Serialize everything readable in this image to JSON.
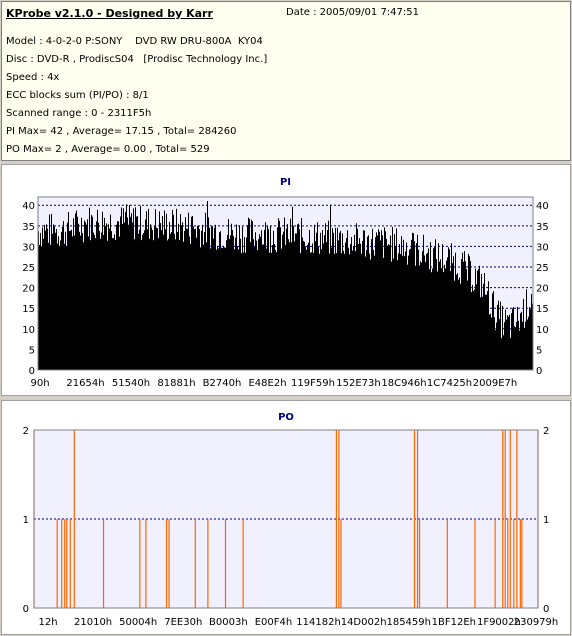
{
  "header": {
    "title": "KProbe v2.1.0 - Designed by Karr",
    "date_label": "Date : 2005/09/01 7:47:51"
  },
  "info": {
    "model": "Model : 4-0-2-0 P:SONY    DVD RW DRU-800A  KY04",
    "disc": "Disc : DVD-R , ProdiscS04   [Prodisc Technology Inc.]",
    "speed": "Speed : 4x",
    "ecc": "ECC blocks sum (PI/PO) : 8/1",
    "range": "Scanned range : 0 - 2311F5h",
    "pi_stats": "PI Max= 42 , Average= 17.15 , Total= 284260",
    "po_stats": "PO Max= 2 , Average= 0.00 , Total= 529"
  },
  "colors": {
    "pi_bar": "#000000",
    "po_bar": "#ff6600",
    "grid": "#000080",
    "plot_bg": "#f0f0ff"
  },
  "chart_data": [
    {
      "type": "area",
      "title": "PI",
      "y_ticks": [
        0,
        5,
        10,
        15,
        20,
        25,
        30,
        35,
        40
      ],
      "ylim": [
        0,
        42
      ],
      "x_tick_labels": [
        "90h",
        "21654h",
        "51540h",
        "81881h",
        "B2740h",
        "E48E2h",
        "119F59h",
        "152E73h",
        "18C946h",
        "1C7425h",
        "2009E7h"
      ],
      "profile_x": [
        0,
        0.05,
        0.1,
        0.2,
        0.3,
        0.4,
        0.5,
        0.6,
        0.7,
        0.75,
        0.8,
        0.85,
        0.9,
        0.93,
        0.95,
        0.97,
        0.99,
        1.0
      ],
      "profile_y": [
        32,
        32,
        34,
        34,
        33,
        31,
        31,
        30,
        29,
        28,
        26,
        24,
        19,
        11,
        9,
        10,
        14,
        17
      ]
    },
    {
      "type": "bar",
      "title": "PO",
      "y_ticks": [
        0,
        1,
        2
      ],
      "ylim": [
        0,
        2
      ],
      "x_tick_labels": [
        "12h",
        "21010h",
        "50004h",
        "7EE30h",
        "B0003h",
        "E00F4h",
        "114182h",
        "14D002h",
        "185459h",
        "1BF12Eh",
        "1F9002h",
        "230979h"
      ],
      "x_range": [
        0,
        1
      ],
      "values_x": [
        0.0,
        0.046,
        0.055,
        0.061,
        0.065,
        0.072,
        0.08,
        0.138,
        0.21,
        0.222,
        0.263,
        0.268,
        0.32,
        0.345,
        0.38,
        0.415,
        0.6,
        0.605,
        0.609,
        0.755,
        0.761,
        0.765,
        0.82,
        0.875,
        0.915,
        0.93,
        0.935,
        0.94,
        0.945,
        0.952,
        0.958,
        0.965,
        0.968,
        1.0
      ],
      "values_y": [
        2,
        1,
        1,
        1,
        1,
        1,
        2,
        1,
        1,
        1,
        1,
        1,
        1,
        1,
        1,
        1,
        2,
        2,
        1,
        2,
        2,
        1,
        1,
        1,
        1,
        2,
        2,
        1,
        2,
        1,
        2,
        1,
        1,
        2
      ]
    }
  ]
}
